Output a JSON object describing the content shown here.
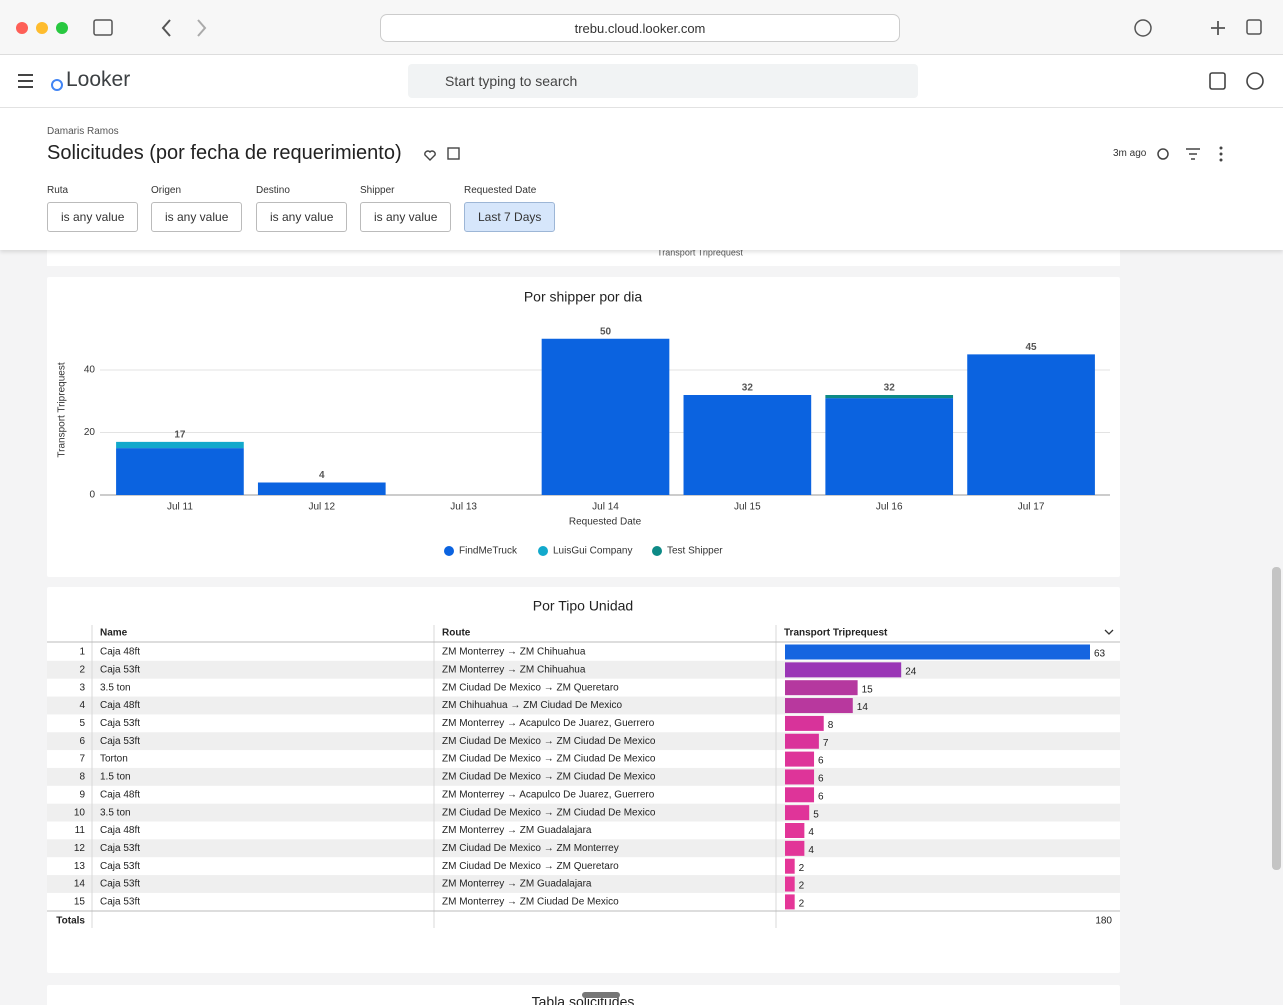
{
  "browser": {
    "url": "trebu.cloud.looker.com"
  },
  "header": {
    "logo": "Looker",
    "search_placeholder": "Start typing to search"
  },
  "dashboard": {
    "owner": "Damaris Ramos",
    "title": "Solicitudes (por fecha de requerimiento)",
    "updated": "3m ago",
    "filters": [
      {
        "label": "Ruta",
        "value": "is any value"
      },
      {
        "label": "Origen",
        "value": "is any value"
      },
      {
        "label": "Destino",
        "value": "is any value"
      },
      {
        "label": "Shipper",
        "value": "is any value"
      },
      {
        "label": "Requested Date",
        "value": "Last 7 Days",
        "active": true
      }
    ]
  },
  "previous_tile": {
    "axis_label": "Transport Triprequest"
  },
  "chart_data": {
    "type": "bar",
    "stacked": true,
    "title": "Por shipper por dia",
    "x_label": "Requested Date",
    "y_label": "Transport Triprequest",
    "categories": [
      "Jul 11",
      "Jul 12",
      "Jul 13",
      "Jul 14",
      "Jul 15",
      "Jul 16",
      "Jul 17"
    ],
    "series": [
      {
        "name": "FindMeTruck",
        "color": "#0b63e0",
        "values": [
          15,
          4,
          0,
          50,
          32,
          31,
          45
        ]
      },
      {
        "name": "LuisGui Company",
        "color": "#12a9cc",
        "values": [
          2,
          0,
          0,
          0,
          0,
          0,
          0
        ]
      },
      {
        "name": "Test Shipper",
        "color": "#0d8a86",
        "values": [
          0,
          0,
          0,
          0,
          0,
          1,
          0
        ]
      }
    ],
    "totals": [
      17,
      4,
      null,
      50,
      32,
      32,
      45
    ],
    "ylim": [
      0,
      60
    ],
    "yticks": [
      0,
      20,
      40
    ],
    "grid": true,
    "legend": "bottom"
  },
  "table": {
    "title": "Por Tipo Unidad",
    "columns": [
      "Name",
      "Route",
      "Transport Triprequest"
    ],
    "rows": [
      {
        "index": 1,
        "name": "Caja 48ft",
        "route": "ZM Monterrey → ZM Chihuahua",
        "value": 63,
        "color": "#1565e0"
      },
      {
        "index": 2,
        "name": "Caja 53ft",
        "route": "ZM Monterrey → ZM Chihuahua",
        "value": 24,
        "color": "#9a36b6"
      },
      {
        "index": 3,
        "name": "3.5 ton",
        "route": "ZM Ciudad De Mexico → ZM Queretaro",
        "value": 15,
        "color": "#b5389f"
      },
      {
        "index": 4,
        "name": "Caja 48ft",
        "route": "ZM Chihuahua → ZM Ciudad De Mexico",
        "value": 14,
        "color": "#b8389e"
      },
      {
        "index": 5,
        "name": "Caja 53ft",
        "route": "ZM Monterrey → Acapulco De Juarez, Guerrero",
        "value": 8,
        "color": "#d8339a"
      },
      {
        "index": 6,
        "name": "Caja 53ft",
        "route": "ZM Ciudad De Mexico → ZM Ciudad De Mexico",
        "value": 7,
        "color": "#da339a"
      },
      {
        "index": 7,
        "name": "Torton",
        "route": "ZM Ciudad De Mexico → ZM Ciudad De Mexico",
        "value": 6,
        "color": "#de3499"
      },
      {
        "index": 8,
        "name": "1.5 ton",
        "route": "ZM Ciudad De Mexico → ZM Ciudad De Mexico",
        "value": 6,
        "color": "#de3499"
      },
      {
        "index": 9,
        "name": "Caja 48ft",
        "route": "ZM Monterrey → Acapulco De Juarez, Guerrero",
        "value": 6,
        "color": "#de3499"
      },
      {
        "index": 10,
        "name": "3.5 ton",
        "route": "ZM Ciudad De Mexico → ZM Ciudad De Mexico",
        "value": 5,
        "color": "#e03499"
      },
      {
        "index": 11,
        "name": "Caja 48ft",
        "route": "ZM Monterrey → ZM Guadalajara",
        "value": 4,
        "color": "#e23598"
      },
      {
        "index": 12,
        "name": "Caja 53ft",
        "route": "ZM Ciudad De Mexico → ZM Monterrey",
        "value": 4,
        "color": "#e23598"
      },
      {
        "index": 13,
        "name": "Caja 53ft",
        "route": "ZM Ciudad De Mexico → ZM Queretaro",
        "value": 2,
        "color": "#e53698"
      },
      {
        "index": 14,
        "name": "Caja 53ft",
        "route": "ZM Monterrey → ZM Guadalajara",
        "value": 2,
        "color": "#e53698"
      },
      {
        "index": 15,
        "name": "Caja 53ft",
        "route": "ZM Monterrey → ZM Ciudad De Mexico",
        "value": 2,
        "color": "#e53698"
      }
    ],
    "totals_label": "Totals",
    "total": 180
  },
  "next_tile": {
    "title": "Tabla solicitudes"
  }
}
